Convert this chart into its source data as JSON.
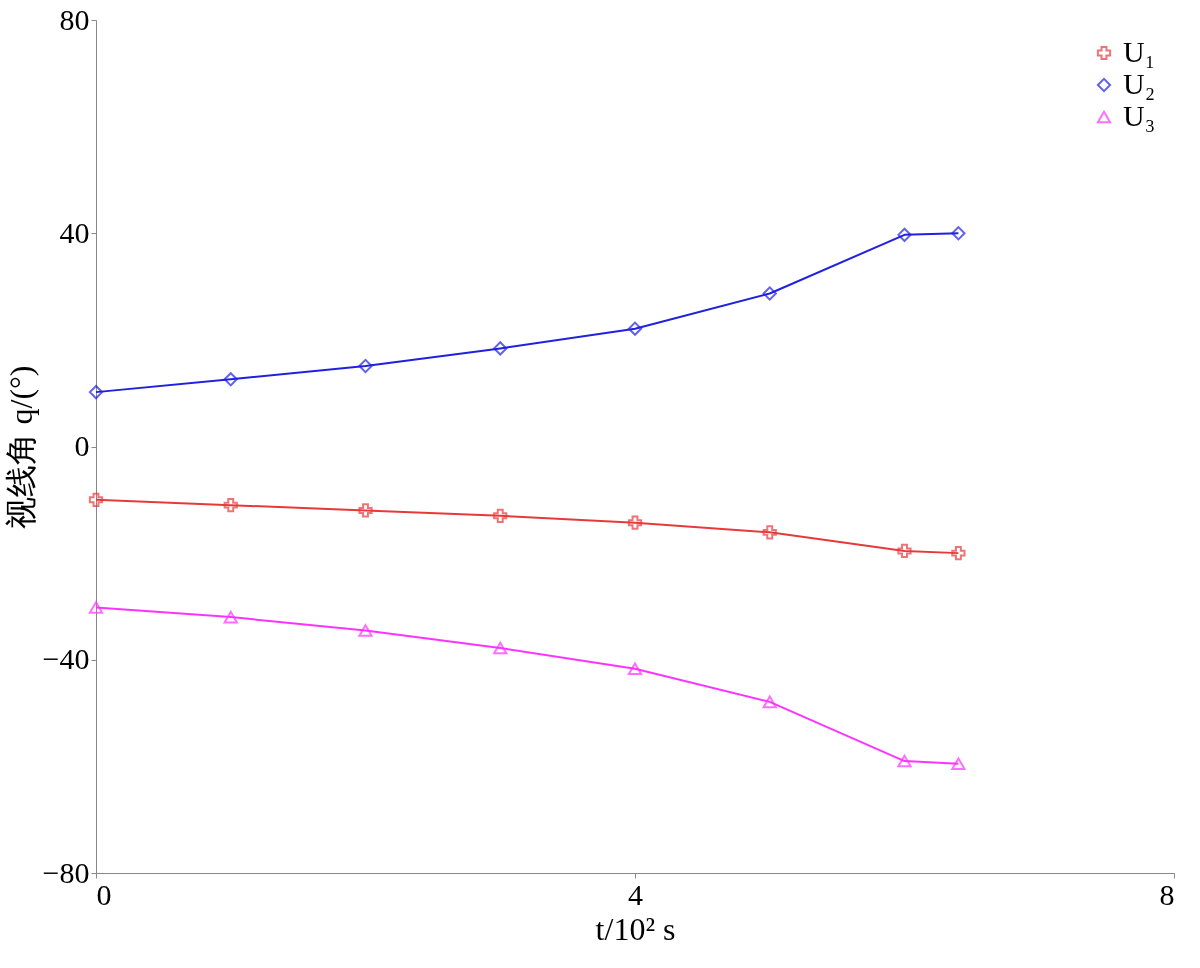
{
  "chart_data": {
    "type": "line",
    "xlabel": "t/10² s",
    "ylabel": "视线角 q/(°)",
    "x": [
      0,
      1,
      2,
      3,
      4,
      5,
      6,
      6.4
    ],
    "series": [
      {
        "name": "U₁",
        "color": "#e8393a",
        "marker": "cross",
        "values": [
          -10,
          -11,
          -12,
          -13,
          -14.3,
          -16.1,
          -19.6,
          -20
        ]
      },
      {
        "name": "U₂",
        "color": "#2020e0",
        "marker": "diamond",
        "values": [
          10.2,
          12.6,
          15.1,
          18.4,
          22.1,
          28.7,
          39.7,
          40
        ]
      },
      {
        "name": "U₃",
        "color": "#ff33ff",
        "marker": "triangle",
        "values": [
          -30.2,
          -32,
          -34.5,
          -37.8,
          -41.7,
          -47.9,
          -59,
          -59.5
        ]
      }
    ],
    "xlim": [
      0,
      8
    ],
    "xticks": [
      0,
      4,
      8
    ],
    "ylim": [
      -80,
      80
    ],
    "yticks": [
      -80,
      -40,
      0,
      40,
      80
    ],
    "grid": false,
    "legend": "top right",
    "line_style": "solid"
  }
}
